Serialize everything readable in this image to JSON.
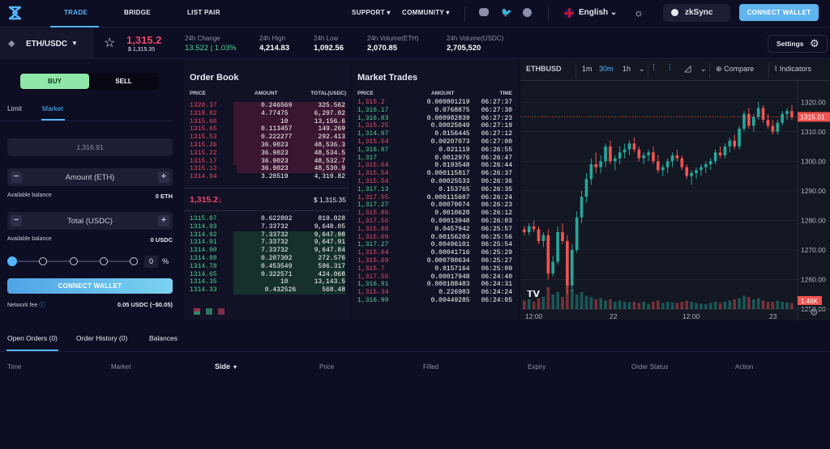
{
  "nav": {
    "links": [
      "TRADE",
      "BRIDGE",
      "LIST PAIR"
    ],
    "support": "SUPPORT",
    "community": "COMMUNITY",
    "language": "English",
    "network": "zkSync",
    "connect": "CONNECT WALLET"
  },
  "ticker": {
    "pair": "ETH/USDC",
    "price": "1,315.2",
    "price_usd": "$ 1,315.35",
    "stats": [
      {
        "label": "24h Change",
        "value": "13.522 | 1.03%"
      },
      {
        "label": "24h High",
        "value": "4,214.83"
      },
      {
        "label": "24h Low",
        "value": "1,092.56"
      },
      {
        "label": "24h Volume(ETH)",
        "value": "2,070.85"
      },
      {
        "label": "24h Volume(USDC)",
        "value": "2,705,520"
      }
    ],
    "settings": "Settings"
  },
  "trade_form": {
    "buy": "BUY",
    "sell": "SELL",
    "tabs": [
      "Limit",
      "Market"
    ],
    "price_placeholder": "1,316.91",
    "amount_label": "Amount (ETH)",
    "available1_label": "Available balance",
    "available1_value": "0 ETH",
    "total_label": "Total (USDC)",
    "available2_label": "Available balance",
    "available2_value": "0 USDC",
    "percent": "0",
    "percent_sign": "%",
    "slider_level": 0,
    "connect": "CONNECT WALLET",
    "fee_label": "Network fee",
    "fee_value": "0.05 USDC (~$0.05)"
  },
  "order_book": {
    "title": "Order Book",
    "headers": [
      "PRICE",
      "AMOUNT",
      "TOTAL(USDC)"
    ],
    "asks": [
      {
        "p": "1320.37",
        "a": "0.246569",
        "t": "325.562",
        "d": 0.72
      },
      {
        "p": "1318.82",
        "a": "4.77475",
        "t": "6,297.02",
        "d": 0.72
      },
      {
        "p": "1315.66",
        "a": "10",
        "t": "13,156.6",
        "d": 0.72
      },
      {
        "p": "1315.65",
        "a": "0.113457",
        "t": "149.269",
        "d": 0.72
      },
      {
        "p": "1315.53",
        "a": "0.222277",
        "t": "292.413",
        "d": 0.72
      },
      {
        "p": "1315.26",
        "a": "36.9023",
        "t": "48,536.3",
        "d": 0.72
      },
      {
        "p": "1315.22",
        "a": "36.9023",
        "t": "48,534.5",
        "d": 0.72
      },
      {
        "p": "1315.17",
        "a": "36.9023",
        "t": "48,532.7",
        "d": 0.72
      },
      {
        "p": "1315.12",
        "a": "36.9023",
        "t": "48,530.9",
        "d": 0.7
      },
      {
        "p": "1314.94",
        "a": "3.28519",
        "t": "4,319.82",
        "d": 0
      }
    ],
    "mid_price": "1,315.2↓",
    "mid_usd": "$ 1,315.35",
    "bids": [
      {
        "p": "1315.07",
        "a": "0.622802",
        "t": "819.028",
        "d": 0
      },
      {
        "p": "1314.93",
        "a": "7.33732",
        "t": "9,648.05",
        "d": 0
      },
      {
        "p": "1314.92",
        "a": "7.33732",
        "t": "9,647.98",
        "d": 0.72
      },
      {
        "p": "1314.91",
        "a": "7.33732",
        "t": "9,647.91",
        "d": 0.72
      },
      {
        "p": "1314.90",
        "a": "7.33732",
        "t": "9,647.84",
        "d": 0.72
      },
      {
        "p": "1314.88",
        "a": "0.207302",
        "t": "272.576",
        "d": 0.72
      },
      {
        "p": "1314.78",
        "a": "0.453549",
        "t": "596.317",
        "d": 0.72
      },
      {
        "p": "1314.65",
        "a": "0.322571",
        "t": "424.068",
        "d": 0.72
      },
      {
        "p": "1314.35",
        "a": "10",
        "t": "13,143.5",
        "d": 0.72
      },
      {
        "p": "1314.33",
        "a": "0.432526",
        "t": "568.48",
        "d": 0.72
      }
    ]
  },
  "market_trades": {
    "title": "Market Trades",
    "headers": [
      "PRICE",
      "AMOUNT",
      "TIME"
    ],
    "rows": [
      {
        "p": "1,315.2",
        "a": "0.000801219",
        "t": "06:27:37",
        "s": "r"
      },
      {
        "p": "1,316.17",
        "a": "0.0768875",
        "t": "06:27:30",
        "s": "g"
      },
      {
        "p": "1,316.83",
        "a": "0.000982839",
        "t": "06:27:23",
        "s": "g"
      },
      {
        "p": "1,315.25",
        "a": "0.00025049",
        "t": "06:27:19",
        "s": "r"
      },
      {
        "p": "1,314.97",
        "a": "0.0156445",
        "t": "06:27:12",
        "s": "g"
      },
      {
        "p": "1,315.54",
        "a": "0.00207073",
        "t": "06:27:00",
        "s": "r"
      },
      {
        "p": "1,316.87",
        "a": "0.021119",
        "t": "06:26:55",
        "s": "g"
      },
      {
        "p": "1,317",
        "a": "0.0012976",
        "t": "06:26:47",
        "s": "g"
      },
      {
        "p": "1,315.64",
        "a": "0.0193548",
        "t": "06:26:44",
        "s": "r"
      },
      {
        "p": "1,315.54",
        "a": "0.000115817",
        "t": "06:26:37",
        "s": "r"
      },
      {
        "p": "1,315.54",
        "a": "0.00025533",
        "t": "06:26:36",
        "s": "r"
      },
      {
        "p": "1,317.13",
        "a": "0.153765",
        "t": "06:26:35",
        "s": "g"
      },
      {
        "p": "1,317.55",
        "a": "0.000115607",
        "t": "06:26:24",
        "s": "r"
      },
      {
        "p": "1,317.27",
        "a": "0.00070074",
        "t": "06:26:23",
        "s": "g"
      },
      {
        "p": "1,315.86",
        "a": "0.0010628",
        "t": "06:26:12",
        "s": "r"
      },
      {
        "p": "1,317.56",
        "a": "0.00013948",
        "t": "06:26:03",
        "s": "r"
      },
      {
        "p": "1,315.88",
        "a": "0.0457942",
        "t": "06:25:57",
        "s": "r"
      },
      {
        "p": "1,315.69",
        "a": "0.00156203",
        "t": "06:25:56",
        "s": "r"
      },
      {
        "p": "1,317.27",
        "a": "0.00496101",
        "t": "06:25:54",
        "s": "g"
      },
      {
        "p": "1,315.64",
        "a": "0.00041716",
        "t": "06:25:29",
        "s": "r"
      },
      {
        "p": "1,315.69",
        "a": "0.000780634",
        "t": "06:25:27",
        "s": "r"
      },
      {
        "p": "1,315.7",
        "a": "0.0157164",
        "t": "06:25:09",
        "s": "r"
      },
      {
        "p": "1,317.56",
        "a": "0.00017948",
        "t": "06:24:40",
        "s": "r"
      },
      {
        "p": "1,316.91",
        "a": "0.000188483",
        "t": "06:24:31",
        "s": "g"
      },
      {
        "p": "1,315.34",
        "a": "0.226983",
        "t": "06:24:24",
        "s": "r"
      },
      {
        "p": "1,316.99",
        "a": "0.00449285",
        "t": "06:24:05",
        "s": "g"
      }
    ]
  },
  "chart_toolbar": {
    "symbol": "ETHBUSD",
    "timeframes": [
      "1m",
      "30m",
      "1h"
    ],
    "active_tf": "30m",
    "compare": "Compare",
    "indicators": "Indicators"
  },
  "chart_data": {
    "type": "candlestick",
    "ylim": [
      1250,
      1325
    ],
    "yticks": [
      "1320.00",
      "1310.00",
      "1300.00",
      "1290.00",
      "1280.00",
      "1270.00",
      "1260.00",
      "1250.00"
    ],
    "xticks": [
      "12:00",
      "22",
      "12:00",
      "23"
    ],
    "last_price": "1315.01",
    "last_volume": "1.46K",
    "candles": [
      [
        1277,
        1278,
        1275,
        1276
      ],
      [
        1276,
        1279,
        1275,
        1278
      ],
      [
        1278,
        1280,
        1276,
        1277
      ],
      [
        1277,
        1278,
        1272,
        1273
      ],
      [
        1273,
        1276,
        1271,
        1275
      ],
      [
        1275,
        1277,
        1260,
        1262
      ],
      [
        1262,
        1268,
        1261,
        1266
      ],
      [
        1266,
        1278,
        1265,
        1276
      ],
      [
        1276,
        1279,
        1272,
        1273
      ],
      [
        1273,
        1275,
        1255,
        1258
      ],
      [
        1258,
        1272,
        1256,
        1270
      ],
      [
        1270,
        1283,
        1269,
        1281
      ],
      [
        1281,
        1290,
        1279,
        1288
      ],
      [
        1288,
        1296,
        1286,
        1294
      ],
      [
        1294,
        1301,
        1292,
        1299
      ],
      [
        1299,
        1303,
        1296,
        1298
      ],
      [
        1298,
        1302,
        1296,
        1300
      ],
      [
        1300,
        1306,
        1298,
        1305
      ],
      [
        1305,
        1307,
        1299,
        1300
      ],
      [
        1300,
        1302,
        1297,
        1301
      ],
      [
        1301,
        1305,
        1299,
        1303
      ],
      [
        1303,
        1306,
        1301,
        1304
      ],
      [
        1304,
        1307,
        1302,
        1306
      ],
      [
        1306,
        1308,
        1303,
        1304
      ],
      [
        1304,
        1305,
        1300,
        1301
      ],
      [
        1301,
        1303,
        1299,
        1302
      ],
      [
        1302,
        1304,
        1300,
        1303
      ],
      [
        1303,
        1305,
        1299,
        1300
      ],
      [
        1300,
        1302,
        1296,
        1297
      ],
      [
        1297,
        1299,
        1295,
        1298
      ],
      [
        1298,
        1301,
        1296,
        1300
      ],
      [
        1300,
        1303,
        1298,
        1302
      ],
      [
        1302,
        1304,
        1300,
        1301
      ],
      [
        1301,
        1302,
        1297,
        1298
      ],
      [
        1298,
        1299,
        1294,
        1295
      ],
      [
        1295,
        1297,
        1292,
        1296
      ],
      [
        1296,
        1298,
        1294,
        1297
      ],
      [
        1297,
        1299,
        1295,
        1298
      ],
      [
        1298,
        1300,
        1296,
        1299
      ],
      [
        1299,
        1301,
        1297,
        1300
      ],
      [
        1300,
        1304,
        1299,
        1303
      ],
      [
        1303,
        1305,
        1301,
        1302
      ],
      [
        1302,
        1306,
        1301,
        1305
      ],
      [
        1305,
        1308,
        1303,
        1307
      ],
      [
        1307,
        1309,
        1304,
        1305
      ],
      [
        1305,
        1312,
        1304,
        1311
      ],
      [
        1311,
        1317,
        1310,
        1316
      ],
      [
        1316,
        1318,
        1311,
        1312
      ],
      [
        1312,
        1316,
        1310,
        1315
      ],
      [
        1315,
        1320,
        1314,
        1318
      ],
      [
        1318,
        1319,
        1313,
        1314
      ],
      [
        1314,
        1316,
        1311,
        1312
      ],
      [
        1312,
        1314,
        1309,
        1310
      ],
      [
        1310,
        1314,
        1309,
        1313
      ],
      [
        1313,
        1317,
        1312,
        1316
      ],
      [
        1316,
        1318,
        1314,
        1317
      ],
      [
        1317,
        1319,
        1314,
        1315
      ]
    ],
    "volumes": [
      0.35,
      0.4,
      0.3,
      0.45,
      0.5,
      0.9,
      0.6,
      0.7,
      0.5,
      1.0,
      0.8,
      0.6,
      0.7,
      0.55,
      0.5,
      0.4,
      0.45,
      0.35,
      0.4,
      0.3,
      0.35,
      0.3,
      0.28,
      0.3,
      0.25,
      0.3,
      0.22,
      0.3,
      0.35,
      0.25,
      0.3,
      0.28,
      0.25,
      0.3,
      0.35,
      0.3,
      0.25,
      0.22,
      0.2,
      0.25,
      0.3,
      0.25,
      0.3,
      0.35,
      0.4,
      0.45,
      0.55,
      0.5,
      0.4,
      0.45,
      0.35,
      0.3,
      0.3,
      0.35,
      0.3,
      0.28,
      0.25
    ]
  },
  "orders": {
    "tabs": [
      "Open Orders (0)",
      "Order History (0)",
      "Balances"
    ],
    "columns": [
      "Time",
      "Market",
      "Side",
      "Price",
      "Filled",
      "Expiry",
      "Order Status",
      "Action"
    ]
  },
  "colors": {
    "red": "#e8496a",
    "green": "#4ed397",
    "accent": "#55b6ff",
    "bg": "#0d0e23"
  }
}
